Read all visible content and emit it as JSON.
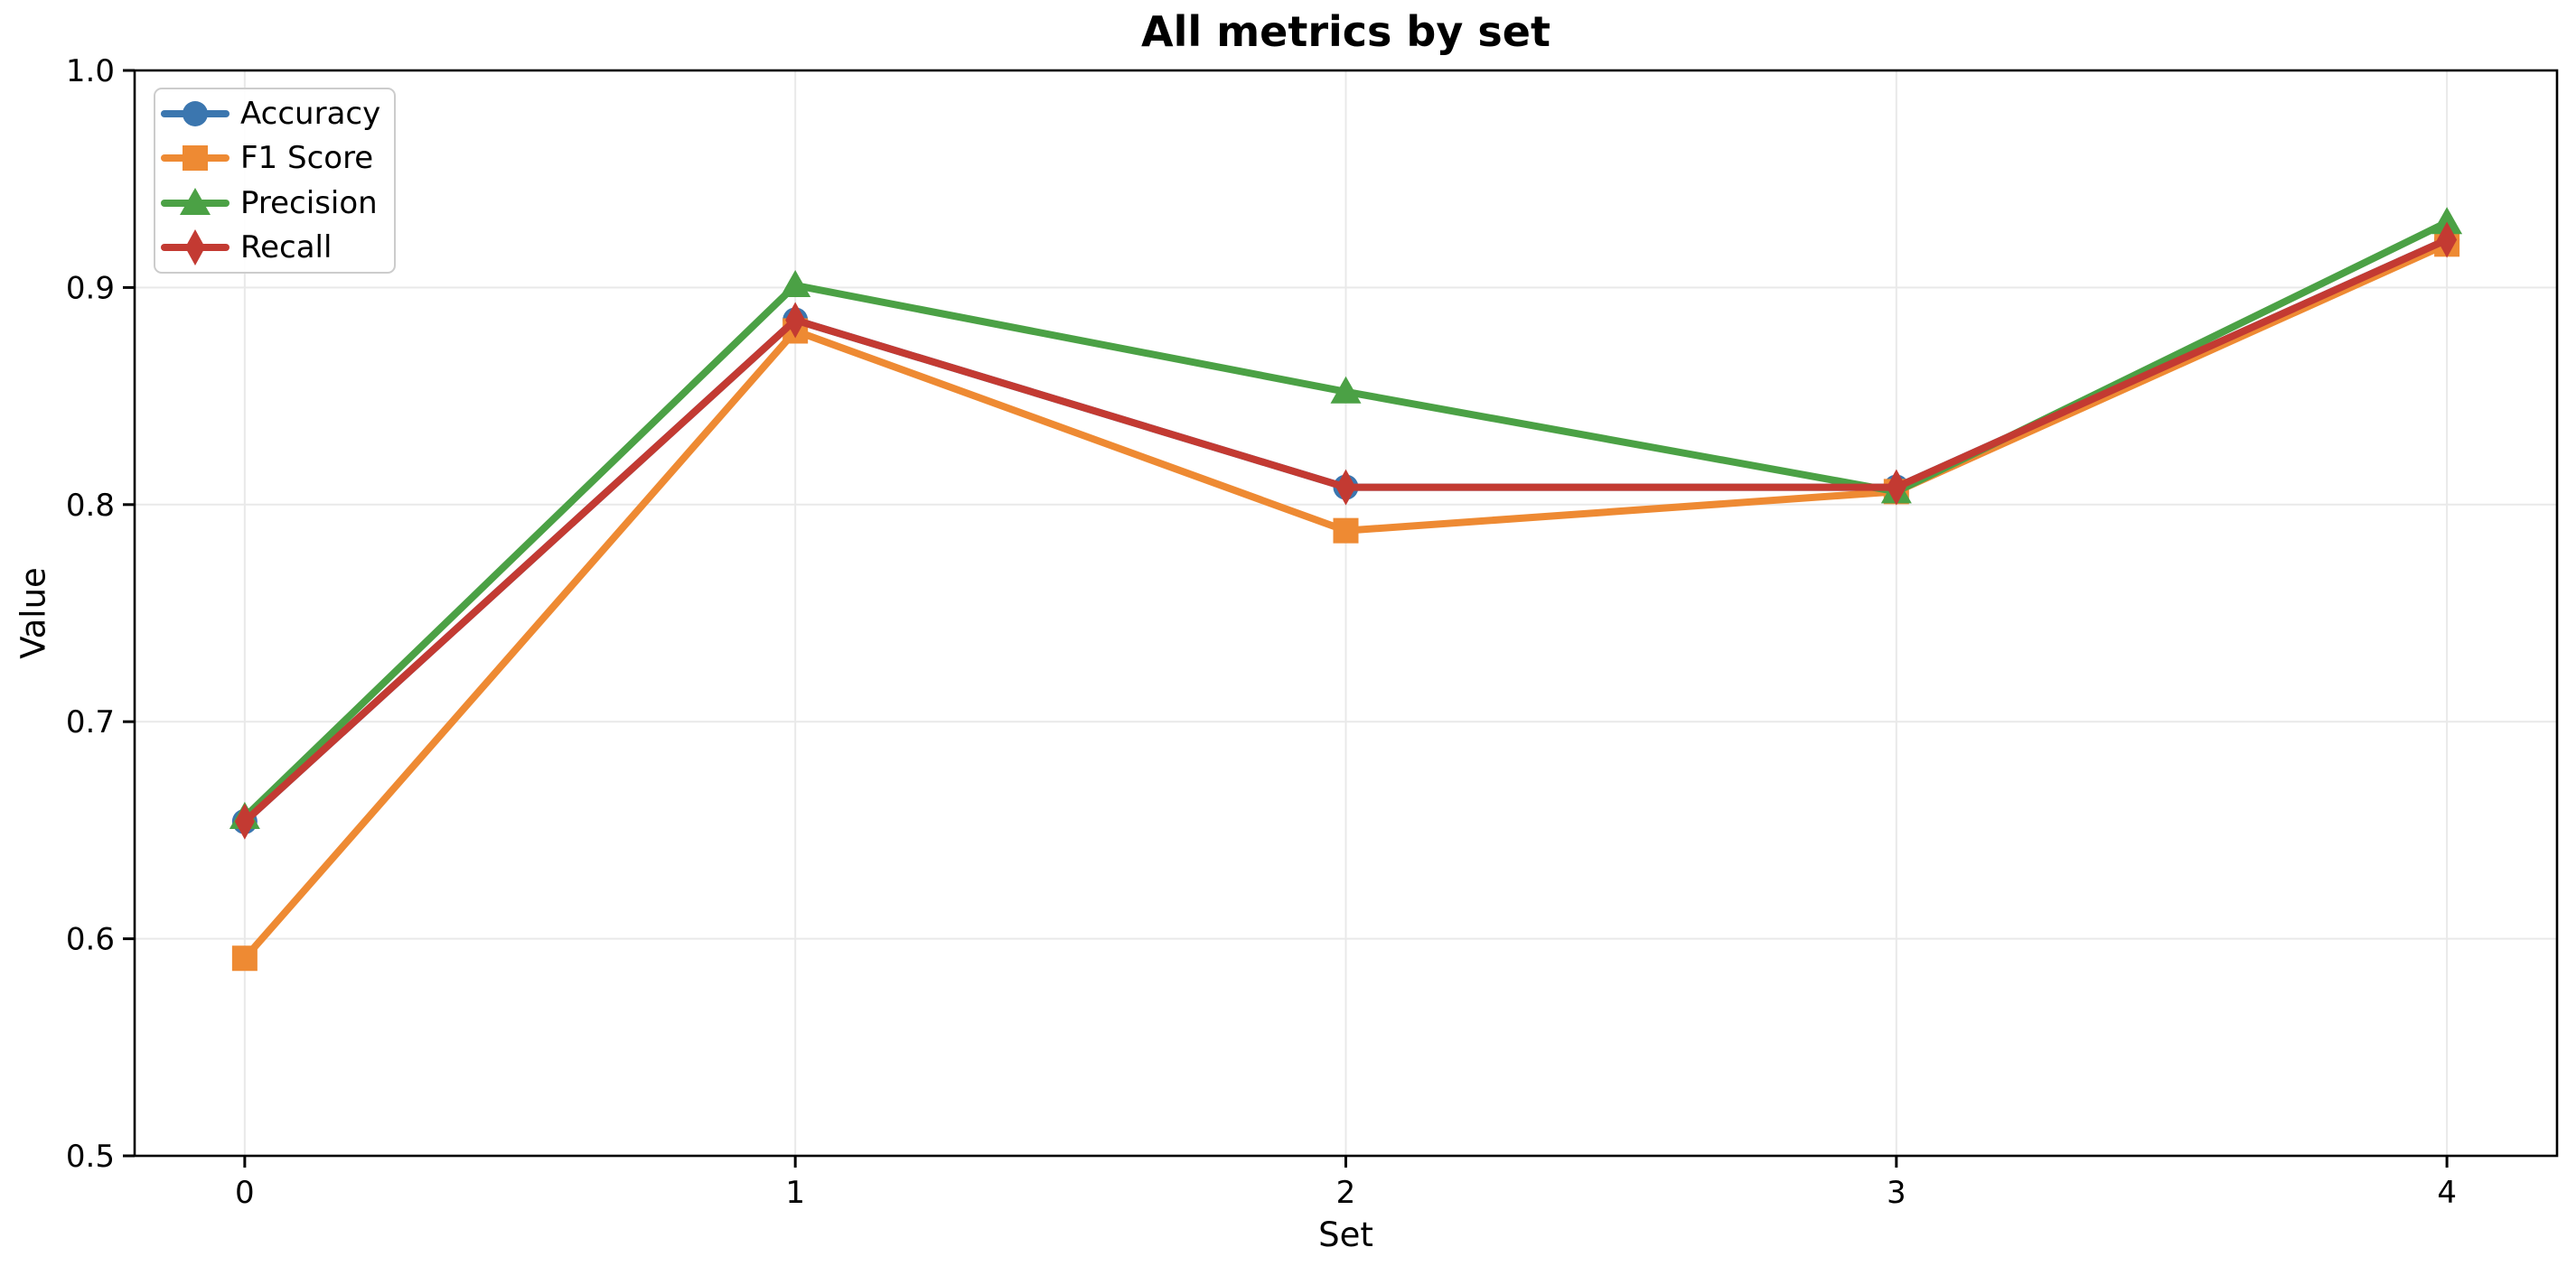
{
  "chart_data": {
    "type": "line",
    "title": "All metrics by set",
    "xlabel": "Set",
    "ylabel": "Value",
    "x": [
      0,
      1,
      2,
      3,
      4
    ],
    "xlim": [
      -0.2,
      4.2
    ],
    "ylim": [
      0.5,
      1.0
    ],
    "xticks": [
      "0",
      "1",
      "2",
      "3",
      "4"
    ],
    "xtick_values": [
      0,
      1,
      2,
      3,
      4
    ],
    "yticks": [
      "0.5",
      "0.6",
      "0.7",
      "0.8",
      "0.9",
      "1.0"
    ],
    "ytick_values": [
      0.5,
      0.6,
      0.7,
      0.8,
      0.9,
      1.0
    ],
    "grid": true,
    "legend_position": "upper left",
    "series": [
      {
        "name": "Accuracy",
        "color": "#3b76af",
        "marker": "circle",
        "values": [
          0.654,
          0.885,
          0.808,
          0.808,
          0.922
        ]
      },
      {
        "name": "F1 Score",
        "color": "#ee8a33",
        "marker": "square",
        "values": [
          0.591,
          0.88,
          0.788,
          0.806,
          0.92
        ]
      },
      {
        "name": "Precision",
        "color": "#4ba145",
        "marker": "triangle",
        "values": [
          0.656,
          0.901,
          0.852,
          0.806,
          0.93
        ]
      },
      {
        "name": "Recall",
        "color": "#c33a32",
        "marker": "diamond",
        "values": [
          0.654,
          0.885,
          0.808,
          0.808,
          0.922
        ]
      }
    ],
    "style": {
      "grid_color": "#e9e9e9",
      "spine_color": "#000000",
      "tick_color": "#000000",
      "background": "#ffffff"
    }
  }
}
